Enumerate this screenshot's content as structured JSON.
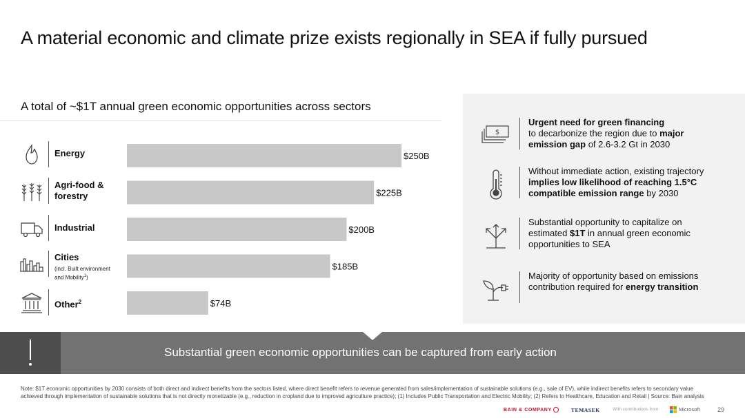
{
  "title": "A material economic and climate prize exists regionally in SEA if fully pursued",
  "left_subtitle": "A total of ~$1T annual green economic opportunities across sectors",
  "sectors": [
    {
      "label": "Energy",
      "icon": "flame-icon"
    },
    {
      "label_line1": "Agri-food &",
      "label_line2": "forestry",
      "icon": "wheat-icon"
    },
    {
      "label": "Industrial",
      "icon": "truck-icon"
    },
    {
      "label": "Cities",
      "note_line1": "(incl. Built environment",
      "note_line2": "and Mobility",
      "note_sup": "1",
      "note_end": ")",
      "icon": "city-icon"
    },
    {
      "label": "Other",
      "label_sup": "2",
      "icon": "bank-building-icon"
    }
  ],
  "chart_data": {
    "type": "bar",
    "orientation": "horizontal",
    "categories": [
      "Energy",
      "Agri-food & forestry",
      "Industrial",
      "Cities",
      "Other"
    ],
    "values": [
      250,
      225,
      200,
      185,
      74
    ],
    "value_labels": [
      "$250B",
      "$225B",
      "$200B",
      "$185B",
      "$74B"
    ],
    "unit": "$B",
    "xlim": [
      0,
      250
    ],
    "bar_color": "#c8c8c8",
    "grid": false
  },
  "right_points": [
    {
      "icon": "dollar-bill-icon",
      "lines": [
        [
          {
            "t": "Urgent need for green financing",
            "b": true
          }
        ],
        [
          {
            "t": "to decarbonize the region due to "
          },
          {
            "t": "major",
            "b": true
          }
        ],
        [
          {
            "t": "emission gap",
            "b": true
          },
          {
            "t": " of 2.6-3.2 Gt in 2030"
          }
        ]
      ]
    },
    {
      "icon": "thermometer-icon",
      "lines": [
        [
          {
            "t": "Without immediate action, existing trajectory"
          }
        ],
        [
          {
            "t": "implies low likelihood of reaching 1.5°C",
            "b": true
          }
        ],
        [
          {
            "t": "compatible emission range",
            "b": true
          },
          {
            "t": " by 2030"
          }
        ]
      ]
    },
    {
      "icon": "growth-arrows-icon",
      "lines": [
        [
          {
            "t": "Substantial opportunity to capitalize on"
          }
        ],
        [
          {
            "t": "estimated "
          },
          {
            "t": "$1T",
            "b": true
          },
          {
            "t": " in annual green economic"
          }
        ],
        [
          {
            "t": "opportunities to SEA"
          }
        ]
      ]
    },
    {
      "icon": "plant-plug-icon",
      "lines": [
        [
          {
            "t": "Majority of opportunity based on emissions"
          }
        ],
        [
          {
            "t": "contribution required for "
          },
          {
            "t": "energy transition",
            "b": true
          }
        ]
      ]
    }
  ],
  "banner_text": "Substantial green economic opportunities can be captured from early action",
  "footnote": "Note: $1T economic opportunities by 2030 consists of both direct and indirect benefits from the sectors listed, where direct benefit refers to revenue generated from sales/implementation of sustainable solutions (e.g., sale of EV), while indirect benefits refers to secondary value achieved through implementation of sustainable solutions that is not directly monetizable (e.g., reduction in cropland due to improved agriculture practice); (1) Includes Public Transportation and Electric Mobility; (2) Refers to Healthcare, Education and Retail | Source: Bain analysis",
  "footer": {
    "bain": "BAIN & COMPANY",
    "temasek": "TEMASEK",
    "contrib": "With contributions from",
    "microsoft": "Microsoft",
    "microsoft_colors": [
      "#f25022",
      "#7fba00",
      "#00a4ef",
      "#ffb900"
    ],
    "page": "29"
  }
}
